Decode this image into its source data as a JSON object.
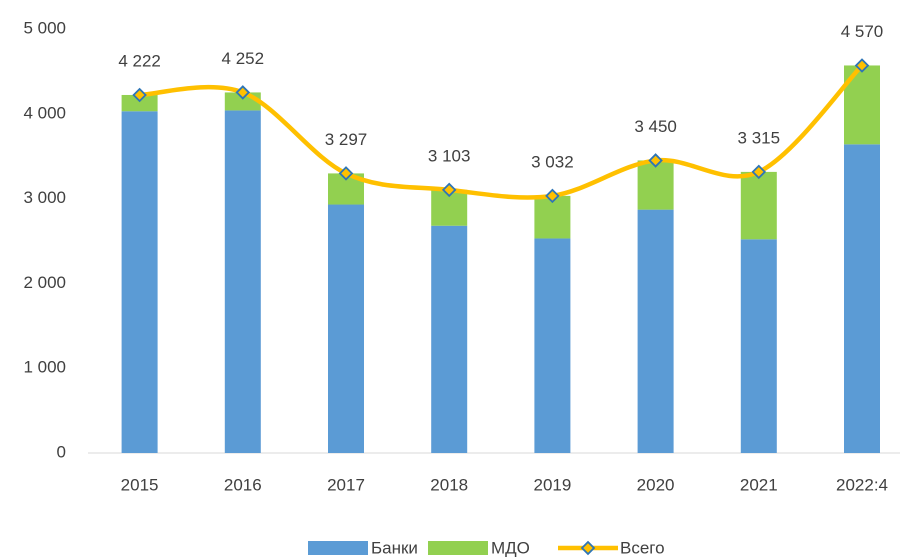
{
  "chart_data": {
    "type": "stacked-bar-line",
    "categories": [
      "2015",
      "2016",
      "2017",
      "2018",
      "2019",
      "2020",
      "2021",
      "2022:4"
    ],
    "series": [
      {
        "name": "Банки",
        "type": "bar",
        "color": "#5b9bd5",
        "values": [
          4030,
          4040,
          2930,
          2680,
          2530,
          2870,
          2520,
          3640
        ]
      },
      {
        "name": "МДО",
        "type": "bar",
        "color": "#92d050",
        "values": [
          192,
          212,
          367,
          423,
          502,
          580,
          795,
          930
        ]
      },
      {
        "name": "Всего",
        "type": "line",
        "color": "#ffc000",
        "marker_color": "#2e75b6",
        "values": [
          4222,
          4252,
          3297,
          3103,
          3032,
          3450,
          3315,
          4570
        ],
        "value_labels": [
          "4 222",
          "4 252",
          "3 297",
          "3 103",
          "3 032",
          "3 450",
          "3 315",
          "4 570"
        ]
      }
    ],
    "ylim": [
      0,
      5000
    ],
    "yticks": [
      0,
      {
        "value": 1000,
        "label": "1 000"
      },
      {
        "value": 2000,
        "label": "2 000"
      },
      {
        "value": 3000,
        "label": "3 000"
      },
      {
        "value": 4000,
        "label": "4 000"
      },
      {
        "value": 5000,
        "label": "5 000"
      }
    ],
    "legend": "bottom"
  }
}
